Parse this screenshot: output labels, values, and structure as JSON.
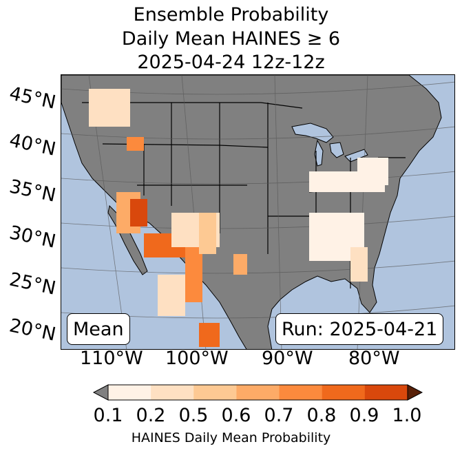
{
  "title": {
    "line1": "Ensemble Probability",
    "line2": "Daily Mean HAINES ≥ 6",
    "line3": "2025-04-24 12z-12z"
  },
  "map": {
    "ocean_color": "#b0c4de",
    "land_color": "#808080",
    "lat_labels": [
      "45°N",
      "40°N",
      "35°N",
      "30°N",
      "25°N",
      "20°N"
    ],
    "lon_labels": [
      "110°W",
      "100°W",
      "90°W",
      "80°W"
    ],
    "mean_label": "Mean",
    "run_label": "Run: 2025-04-21"
  },
  "colorbar": {
    "title": "HAINES Daily Mean Probability",
    "ticks": [
      "0.1",
      "0.2",
      "0.5",
      "0.6",
      "0.7",
      "0.8",
      "0.9",
      "1.0"
    ],
    "under_color": "#808080",
    "over_color": "#582008",
    "colors": [
      "#fff2e6",
      "#fee0c2",
      "#fdc993",
      "#fdab67",
      "#fc8a3d",
      "#f0691c",
      "#d9480c"
    ]
  }
}
